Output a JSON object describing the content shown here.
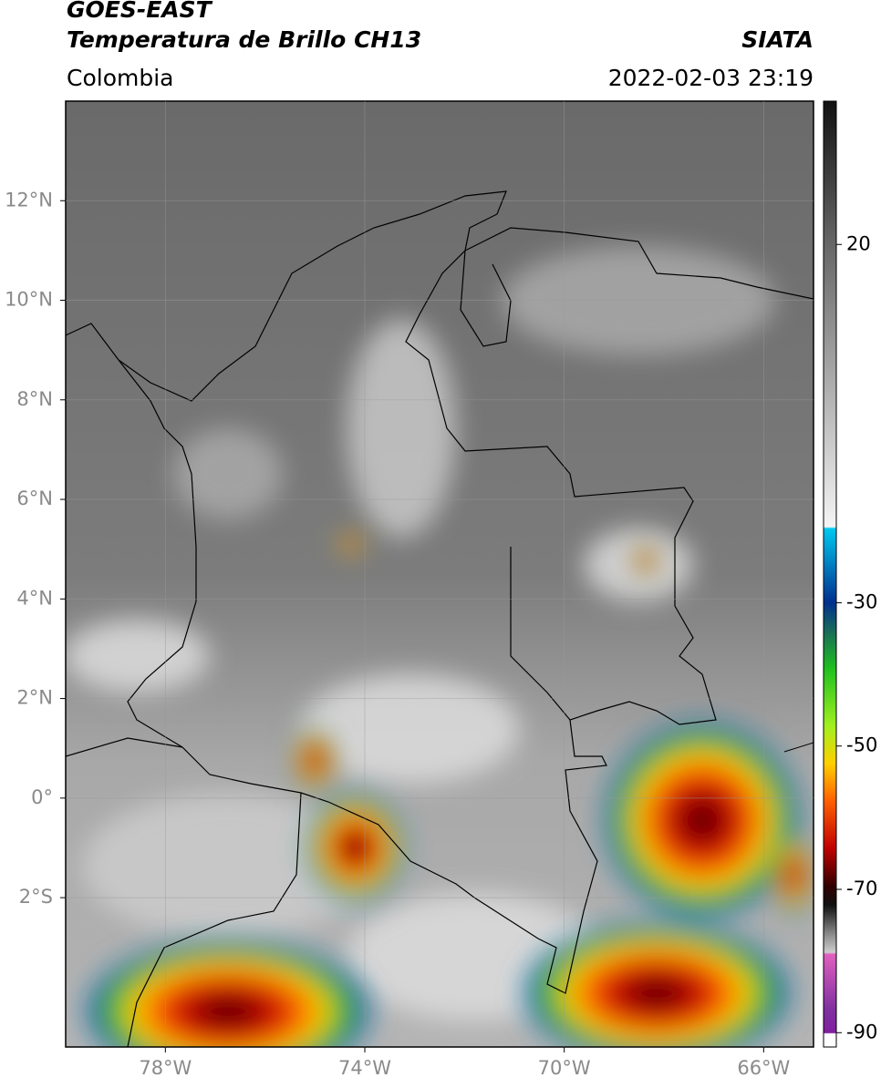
{
  "header": {
    "satellite": "GOES-EAST",
    "product": "Temperatura de Brillo CH13",
    "source": "SIATA",
    "region": "Colombia",
    "datetime": "2022-02-03 23:19"
  },
  "map": {
    "xlim": [
      -80,
      -65
    ],
    "ylim": [
      -5,
      14
    ],
    "xticks": [
      {
        "value": -78,
        "label": "78°W"
      },
      {
        "value": -74,
        "label": "74°W"
      },
      {
        "value": -70,
        "label": "70°W"
      },
      {
        "value": -66,
        "label": "66°W"
      }
    ],
    "yticks": [
      {
        "value": 12,
        "label": "12°N"
      },
      {
        "value": 10,
        "label": "10°N"
      },
      {
        "value": 8,
        "label": "8°N"
      },
      {
        "value": 6,
        "label": "6°N"
      },
      {
        "value": 4,
        "label": "4°N"
      },
      {
        "value": 2,
        "label": "2°N"
      },
      {
        "value": 0,
        "label": "0°"
      },
      {
        "value": -2,
        "label": "2°S"
      }
    ],
    "grid": true
  },
  "colorbar": {
    "lim": [
      40,
      -92
    ],
    "ticks": [
      20,
      -30,
      -50,
      -70,
      -90
    ]
  }
}
